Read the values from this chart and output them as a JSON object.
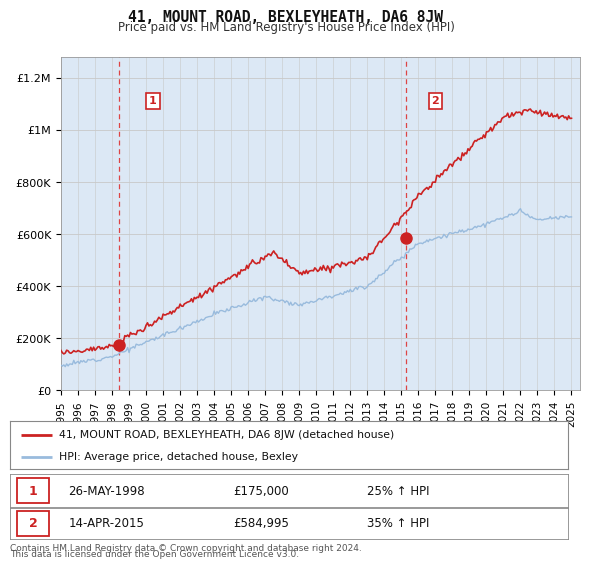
{
  "title": "41, MOUNT ROAD, BEXLEYHEATH, DA6 8JW",
  "subtitle": "Price paid vs. HM Land Registry's House Price Index (HPI)",
  "ylabel_ticks": [
    "£0",
    "£200K",
    "£400K",
    "£600K",
    "£800K",
    "£1M",
    "£1.2M"
  ],
  "ytick_vals": [
    0,
    200000,
    400000,
    600000,
    800000,
    1000000,
    1200000
  ],
  "ylim": [
    0,
    1280000
  ],
  "xlim_start": 1995.0,
  "xlim_end": 2025.5,
  "sale1_x": 1998.38,
  "sale1_y": 175000,
  "sale1_label": "1",
  "sale1_date": "26-MAY-1998",
  "sale1_price": "£175,000",
  "sale1_hpi": "25% ↑ HPI",
  "sale2_x": 2015.28,
  "sale2_y": 584995,
  "sale2_label": "2",
  "sale2_date": "14-APR-2015",
  "sale2_price": "£584,995",
  "sale2_hpi": "35% ↑ HPI",
  "hpi_color": "#99bbdd",
  "price_color": "#cc2222",
  "dashed_color": "#dd4444",
  "background_color": "#dce8f5",
  "legend_entry1": "41, MOUNT ROAD, BEXLEYHEATH, DA6 8JW (detached house)",
  "legend_entry2": "HPI: Average price, detached house, Bexley",
  "footer1": "Contains HM Land Registry data © Crown copyright and database right 2024.",
  "footer2": "This data is licensed under the Open Government Licence v3.0.",
  "xtick_years": [
    1995,
    1996,
    1997,
    1998,
    1999,
    2000,
    2001,
    2002,
    2003,
    2004,
    2005,
    2006,
    2007,
    2008,
    2009,
    2010,
    2011,
    2012,
    2013,
    2014,
    2015,
    2016,
    2017,
    2018,
    2019,
    2020,
    2021,
    2022,
    2023,
    2024,
    2025
  ]
}
